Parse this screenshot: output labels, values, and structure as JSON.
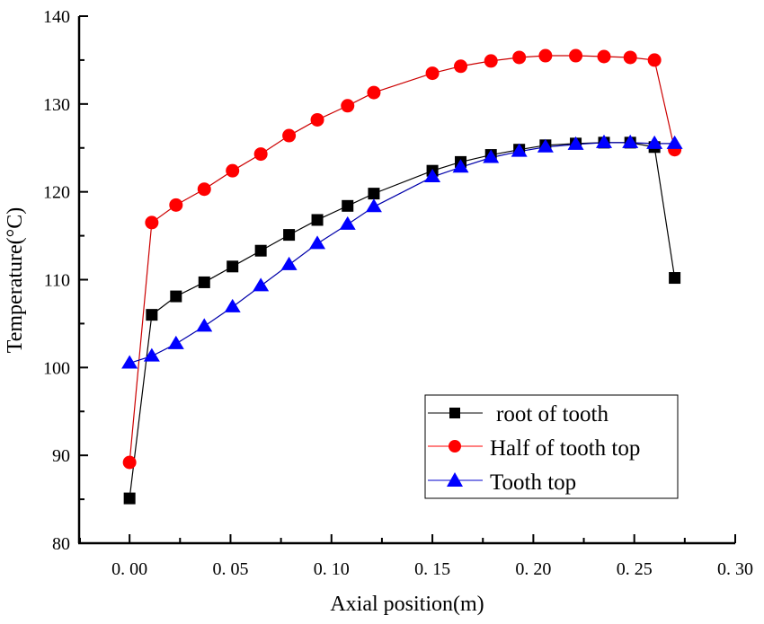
{
  "chart_data": {
    "type": "line",
    "title": "",
    "xlabel": "Axial position(m)",
    "ylabel": "Temperature(°C)",
    "xlim": [
      -0.025,
      0.3
    ],
    "ylim": [
      80,
      140
    ],
    "xticks": [
      0.0,
      0.05,
      0.1,
      0.15,
      0.2,
      0.25,
      0.3
    ],
    "xtick_labels": [
      "0. 00",
      "0. 05",
      "0. 10",
      "0. 15",
      "0. 20",
      "0. 25",
      "0. 30"
    ],
    "yticks": [
      80,
      90,
      100,
      110,
      120,
      130,
      140
    ],
    "ytick_labels": [
      "80",
      "90",
      "100",
      "110",
      "120",
      "130",
      "140"
    ],
    "grid": false,
    "legend_position": "bottom-right",
    "x": [
      0.0,
      0.011,
      0.023,
      0.037,
      0.051,
      0.065,
      0.079,
      0.093,
      0.108,
      0.121,
      0.15,
      0.164,
      0.179,
      0.193,
      0.206,
      0.221,
      0.235,
      0.248,
      0.26,
      0.27
    ],
    "series": [
      {
        "name": "root of tooth",
        "color": "#000000",
        "marker": "square",
        "values": [
          85.1,
          106.0,
          108.1,
          109.7,
          111.5,
          113.3,
          115.1,
          116.8,
          118.4,
          119.8,
          122.4,
          123.4,
          124.2,
          124.8,
          125.3,
          125.5,
          125.6,
          125.6,
          125.1,
          110.2
        ]
      },
      {
        "name": "Half of tooth top",
        "color": "#ff0000",
        "marker": "circle",
        "values": [
          89.2,
          116.5,
          118.5,
          120.3,
          122.4,
          124.3,
          126.4,
          128.2,
          129.8,
          131.3,
          133.5,
          134.3,
          134.9,
          135.3,
          135.5,
          135.5,
          135.4,
          135.3,
          135.0,
          124.8
        ]
      },
      {
        "name": "Tooth top",
        "color": "#0000ff",
        "marker": "triangle",
        "values": [
          100.5,
          101.3,
          102.7,
          104.7,
          106.9,
          109.3,
          111.7,
          114.1,
          116.3,
          118.3,
          121.7,
          122.8,
          123.9,
          124.6,
          125.1,
          125.4,
          125.6,
          125.6,
          125.5,
          125.5
        ]
      }
    ]
  }
}
